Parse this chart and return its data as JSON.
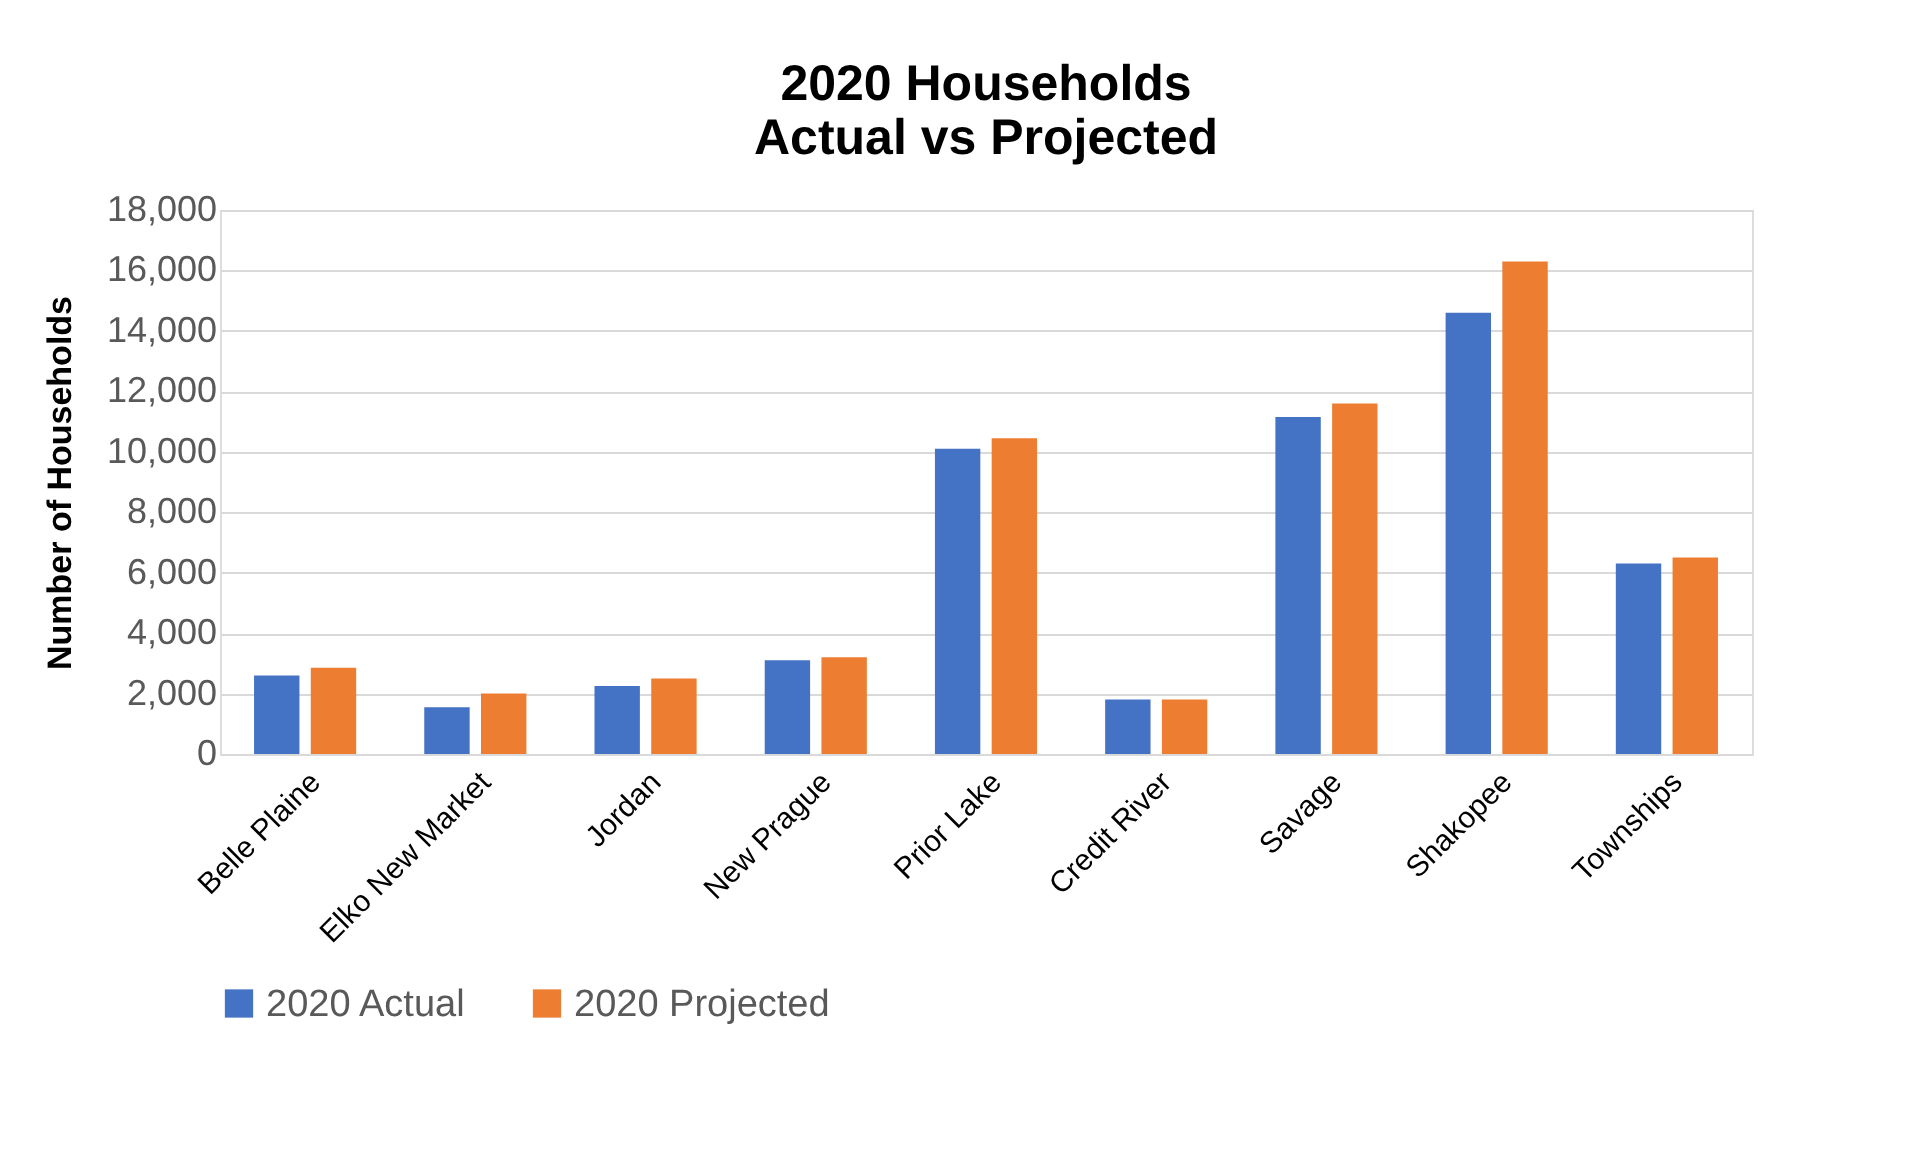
{
  "chart_data": {
    "type": "bar",
    "title": "2020 Households\nActual vs Projected",
    "ylabel": "Number of Households",
    "categories": [
      "Belle Plaine",
      "Elko New Market",
      "Jordan",
      "New Prague",
      "Prior Lake",
      "Credit River",
      "Savage",
      "Shakopee",
      "Townships"
    ],
    "series": [
      {
        "name": "2020 Actual",
        "color": "#4472c4",
        "values": [
          2600,
          1550,
          2250,
          3100,
          10100,
          1800,
          11150,
          14600,
          6300
        ]
      },
      {
        "name": "2020 Projected",
        "color": "#ed7d31",
        "values": [
          2850,
          2000,
          2500,
          3200,
          10450,
          1800,
          11600,
          16300,
          6500
        ]
      }
    ],
    "ylim": [
      0,
      18000
    ],
    "yticks": [
      {
        "value": 0,
        "label": "0"
      },
      {
        "value": 2000,
        "label": "2,000"
      },
      {
        "value": 4000,
        "label": "4,000"
      },
      {
        "value": 6000,
        "label": "6,000"
      },
      {
        "value": 8000,
        "label": "8,000"
      },
      {
        "value": 10000,
        "label": "10,000"
      },
      {
        "value": 12000,
        "label": "12,000"
      },
      {
        "value": 14000,
        "label": "14,000"
      },
      {
        "value": 16000,
        "label": "16,000"
      },
      {
        "value": 18000,
        "label": "18,000"
      }
    ],
    "grid": "y",
    "legend": "bottom"
  }
}
